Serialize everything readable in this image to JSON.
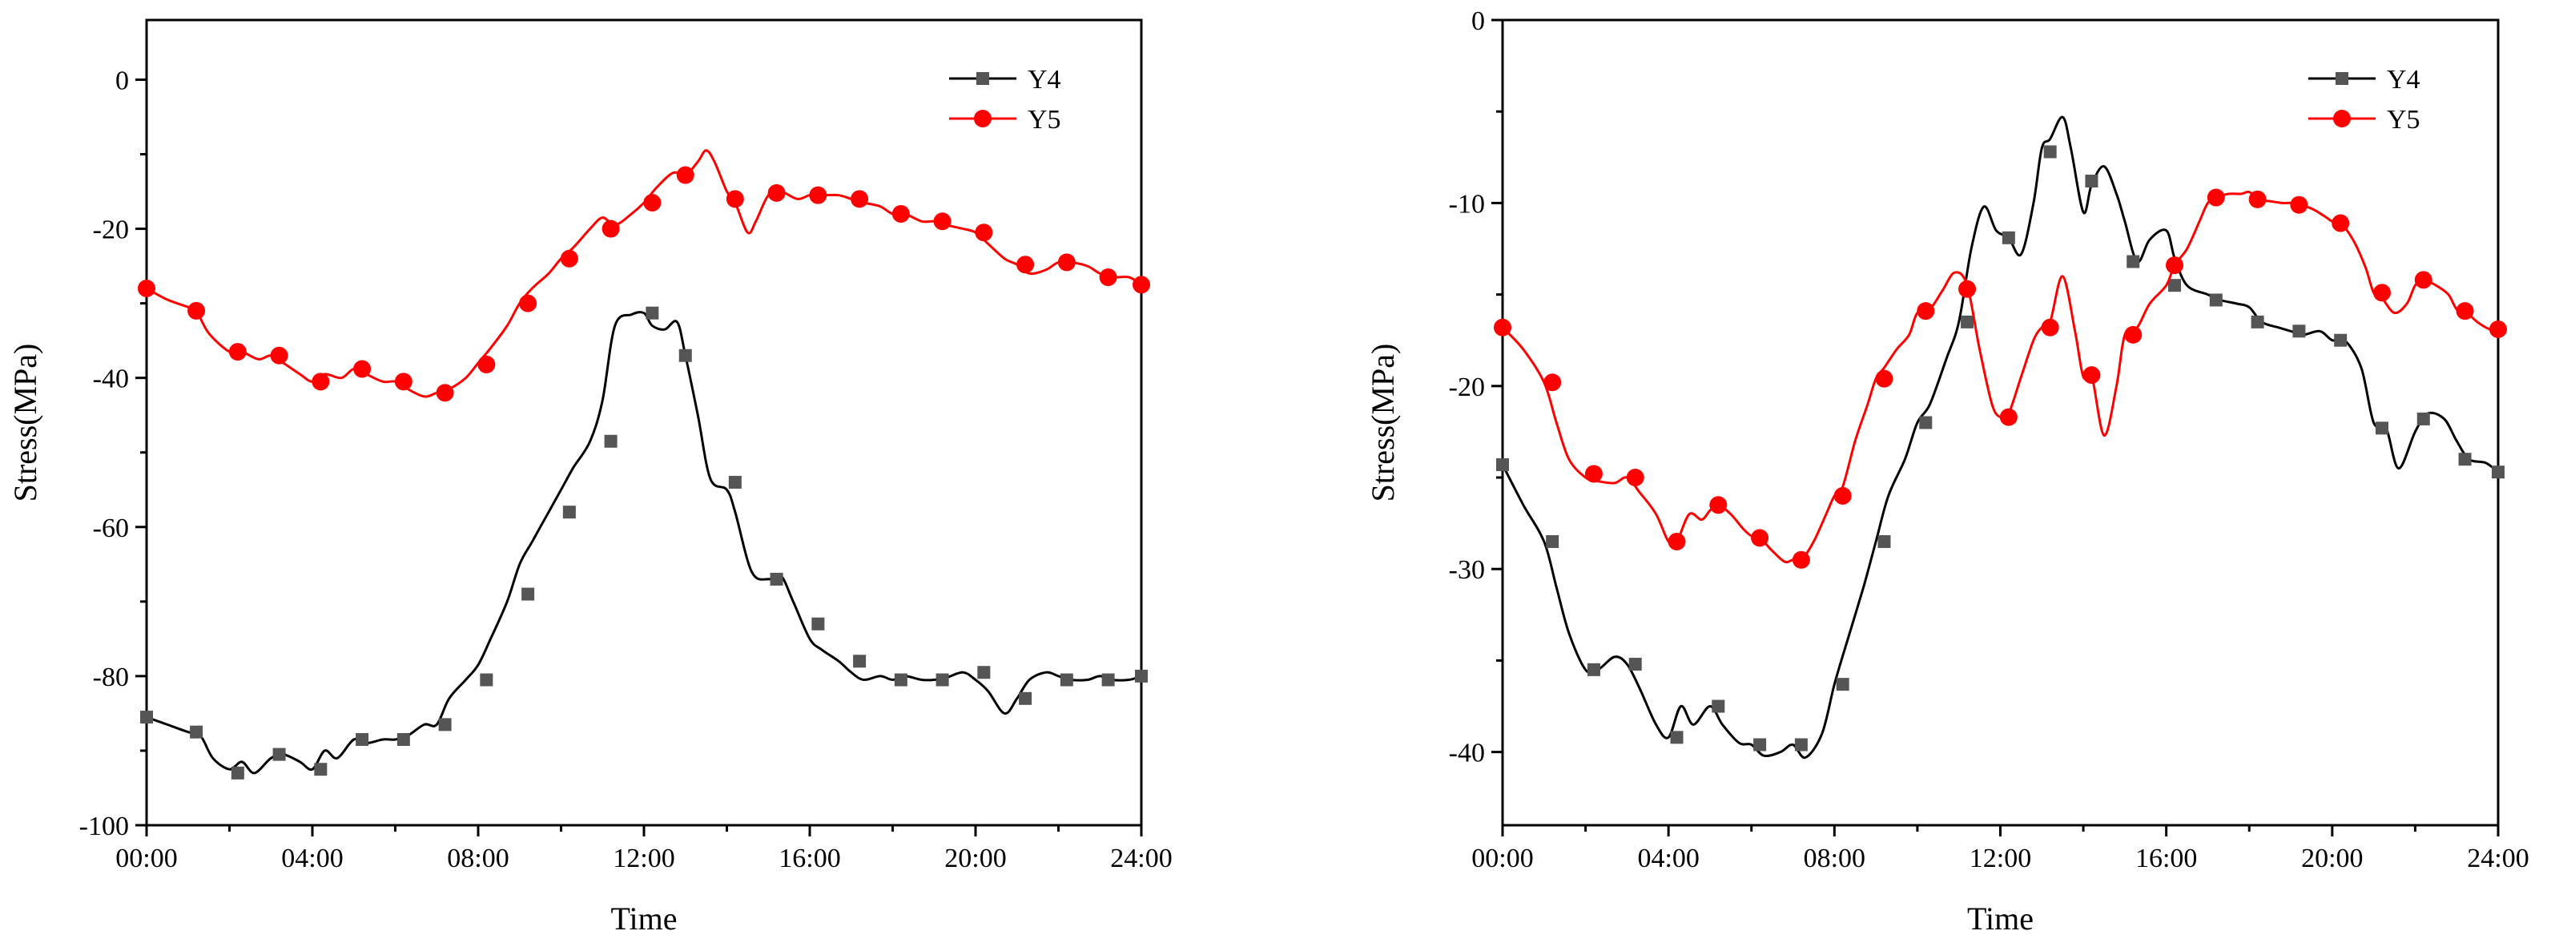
{
  "chart_data": [
    {
      "type": "line",
      "title": "",
      "xlabel": "Time",
      "ylabel": "Stress(MPa)",
      "xlim": [
        0,
        24
      ],
      "ylim": [
        -100,
        8
      ],
      "xticks": [
        0,
        4,
        8,
        12,
        16,
        20,
        24
      ],
      "xtick_labels": [
        "00:00",
        "04:00",
        "08:00",
        "12:00",
        "16:00",
        "20:00",
        "24:00"
      ],
      "yticks": [
        -100,
        -80,
        -60,
        -40,
        -20,
        0
      ],
      "ytick_labels": [
        "-100",
        "-80",
        "-60",
        "-40",
        "-20",
        "0"
      ],
      "legend_position": "top-right",
      "series": [
        {
          "name": "Y4",
          "color": "#000000",
          "marker": "square",
          "marker_color": "#555555",
          "line_x": [
            0,
            0.5,
            1,
            1.3,
            1.6,
            2.0,
            2.3,
            2.6,
            3.0,
            3.3,
            3.7,
            4.0,
            4.3,
            4.6,
            5.0,
            5.3,
            5.7,
            6.0,
            6.3,
            6.7,
            7.0,
            7.3,
            7.7,
            8.0,
            8.3,
            8.7,
            9.0,
            9.3,
            9.7,
            10.0,
            10.3,
            10.7,
            11.0,
            11.3,
            11.7,
            12.0,
            12.2,
            12.5,
            12.8,
            13.0,
            13.3,
            13.6,
            14.0,
            14.2,
            14.6,
            15.0,
            15.3,
            15.6,
            16.0,
            16.3,
            16.7,
            17.0,
            17.3,
            17.7,
            18.0,
            18.3,
            18.7,
            19.0,
            19.3,
            19.7,
            20.0,
            20.3,
            20.7,
            21.0,
            21.3,
            21.7,
            22.0,
            22.3,
            22.7,
            23.0,
            23.3,
            23.7,
            24.0
          ],
          "line_y": [
            -85.5,
            -86.5,
            -87.5,
            -88,
            -91,
            -92.5,
            -91.5,
            -93,
            -91,
            -90.5,
            -91.5,
            -92.5,
            -90,
            -91,
            -88.5,
            -89,
            -88.5,
            -88.5,
            -88,
            -86.5,
            -86.5,
            -83,
            -80.5,
            -78.5,
            -75,
            -70,
            -65,
            -62,
            -58,
            -55,
            -52,
            -48.5,
            -43,
            -33,
            -31.5,
            -31.3,
            -33,
            -33.5,
            -32.5,
            -37,
            -45,
            -53.5,
            -55,
            -58,
            -66,
            -67,
            -66.5,
            -70,
            -75,
            -76.5,
            -78,
            -79.5,
            -80.5,
            -80,
            -80.5,
            -80,
            -80.5,
            -80.5,
            -80.2,
            -79.5,
            -80.5,
            -82,
            -85,
            -83,
            -80.5,
            -79.5,
            -80,
            -80.5,
            -80.5,
            -80,
            -80.5,
            -80.5,
            -80
          ],
          "marker_x": [
            0.0,
            1.2,
            2.2,
            3.2,
            4.2,
            5.2,
            6.2,
            7.2,
            8.2,
            9.2,
            10.2,
            11.2,
            12.2,
            13.0,
            14.2,
            15.2,
            16.2,
            17.2,
            18.2,
            19.2,
            20.2,
            21.2,
            22.2,
            23.2,
            24.0
          ],
          "marker_y": [
            -85.5,
            -87.5,
            -93,
            -90.5,
            -92.5,
            -88.5,
            -88.5,
            -86.5,
            -80.5,
            -69,
            -58,
            -48.5,
            -31.3,
            -37,
            -54,
            -67,
            -73,
            -78,
            -80.5,
            -80.5,
            -79.5,
            -83,
            -80.5,
            -80.5,
            -80
          ]
        },
        {
          "name": "Y5",
          "color": "#ff0000",
          "marker": "circle",
          "marker_color": "#ff0000",
          "line_x": [
            0,
            0.5,
            1,
            1.2,
            1.5,
            2.0,
            2.3,
            2.7,
            3.0,
            3.3,
            3.7,
            4.0,
            4.3,
            4.7,
            5.0,
            5.3,
            5.7,
            6.0,
            6.3,
            6.7,
            7.0,
            7.3,
            7.7,
            8.0,
            8.3,
            8.7,
            9.0,
            9.3,
            9.7,
            10.0,
            10.3,
            10.7,
            11.0,
            11.3,
            11.7,
            12.0,
            12.3,
            12.7,
            13.0,
            13.3,
            13.5,
            13.7,
            14.0,
            14.2,
            14.5,
            14.7,
            15.0,
            15.3,
            15.7,
            16.0,
            16.3,
            16.7,
            17.0,
            17.3,
            17.7,
            18.0,
            18.3,
            18.7,
            19.0,
            19.3,
            19.7,
            20.0,
            20.3,
            20.7,
            21.0,
            21.3,
            21.7,
            22.0,
            22.3,
            22.7,
            23.0,
            23.3,
            23.7,
            24.0
          ],
          "line_y": [
            -28,
            -29.5,
            -30.5,
            -31,
            -34,
            -36.5,
            -36.5,
            -37.5,
            -37,
            -38,
            -39.5,
            -40.5,
            -39.5,
            -40,
            -38.8,
            -39.5,
            -40.5,
            -40.5,
            -41.5,
            -42.5,
            -42,
            -41.5,
            -40,
            -38,
            -36,
            -33,
            -30,
            -28,
            -26,
            -24,
            -22.5,
            -20,
            -18.5,
            -19.5,
            -18,
            -16.5,
            -14.5,
            -12.5,
            -12.8,
            -11,
            -9.5,
            -11,
            -15,
            -16.5,
            -20.5,
            -19,
            -15.5,
            -15,
            -16,
            -15.5,
            -15.5,
            -15.5,
            -16,
            -16.5,
            -17,
            -18,
            -18,
            -19,
            -19,
            -19.5,
            -20,
            -20.5,
            -22,
            -24,
            -24.8,
            -26,
            -25.5,
            -24.5,
            -24.5,
            -25,
            -26,
            -26.5,
            -26.5,
            -27.5
          ],
          "marker_x": [
            0.0,
            1.2,
            2.2,
            3.2,
            4.2,
            5.2,
            6.2,
            7.2,
            8.2,
            9.2,
            10.2,
            11.2,
            12.2,
            13.0,
            14.2,
            15.2,
            16.2,
            17.2,
            18.2,
            19.2,
            20.2,
            21.2,
            22.2,
            23.2,
            24.0
          ],
          "marker_y": [
            -28,
            -31,
            -36.5,
            -37,
            -40.5,
            -38.8,
            -40.5,
            -42,
            -38.2,
            -30,
            -24,
            -20,
            -16.5,
            -12.8,
            -16,
            -15.2,
            -15.5,
            -16,
            -18,
            -19,
            -20.5,
            -24.8,
            -24.5,
            -26.5,
            -27.5
          ]
        }
      ]
    },
    {
      "type": "line",
      "title": "",
      "xlabel": "Time",
      "ylabel": "Stress(MPa)",
      "xlim": [
        0,
        24
      ],
      "ylim": [
        -44,
        0
      ],
      "xticks": [
        0,
        4,
        8,
        12,
        16,
        20,
        24
      ],
      "xtick_labels": [
        "00:00",
        "04:00",
        "08:00",
        "12:00",
        "16:00",
        "20:00",
        "24:00"
      ],
      "yticks": [
        -40,
        -30,
        -20,
        -10,
        0
      ],
      "ytick_labels": [
        "-40",
        "-30",
        "-20",
        "-10",
        "0"
      ],
      "legend_position": "top-right",
      "series": [
        {
          "name": "Y4",
          "color": "#000000",
          "marker": "square",
          "marker_color": "#555555",
          "line_x": [
            0,
            0.5,
            1.0,
            1.3,
            1.6,
            2.0,
            2.3,
            2.7,
            3.0,
            3.3,
            3.7,
            4.0,
            4.3,
            4.6,
            5.0,
            5.3,
            5.7,
            6.0,
            6.3,
            6.7,
            7.0,
            7.3,
            7.7,
            8.0,
            8.3,
            8.7,
            9.0,
            9.3,
            9.7,
            10.0,
            10.3,
            10.7,
            11.0,
            11.3,
            11.6,
            11.9,
            12.2,
            12.5,
            12.8,
            13.0,
            13.2,
            13.5,
            13.7,
            14.0,
            14.2,
            14.5,
            14.8,
            15.0,
            15.3,
            15.6,
            16.0,
            16.2,
            16.5,
            17.0,
            17.3,
            17.7,
            18.0,
            18.3,
            18.7,
            19.0,
            19.3,
            19.7,
            20.0,
            20.3,
            20.7,
            21.0,
            21.3,
            21.6,
            22.0,
            22.3,
            22.7,
            23.0,
            23.3,
            23.7,
            24.0
          ],
          "line_y": [
            -24.3,
            -26.5,
            -28.5,
            -31,
            -33.5,
            -35.5,
            -35.5,
            -34.8,
            -35.2,
            -36.5,
            -38.5,
            -39.2,
            -37.5,
            -38.5,
            -37.5,
            -38.5,
            -39.5,
            -39.6,
            -40.2,
            -40,
            -39.6,
            -40.3,
            -39,
            -36.3,
            -34,
            -31,
            -28.5,
            -26,
            -24,
            -22,
            -21,
            -18.5,
            -16.5,
            -12.5,
            -10.2,
            -11.5,
            -11.9,
            -12.8,
            -10,
            -7,
            -6.5,
            -5.3,
            -7,
            -10.5,
            -9,
            -8,
            -9.5,
            -11,
            -13.2,
            -12,
            -11.5,
            -13,
            -14.5,
            -15,
            -15.3,
            -15.5,
            -15.7,
            -16.5,
            -16.8,
            -17,
            -17.2,
            -17,
            -17.5,
            -17.5,
            -19,
            -22,
            -22.3,
            -24.5,
            -22.5,
            -21.5,
            -21.8,
            -23,
            -24,
            -24.2,
            -24.7
          ],
          "marker_x": [
            0.0,
            1.2,
            2.2,
            3.2,
            4.2,
            5.2,
            6.2,
            7.2,
            8.2,
            9.2,
            10.2,
            11.2,
            12.2,
            13.2,
            14.2,
            15.2,
            16.2,
            17.2,
            18.2,
            19.2,
            20.2,
            21.2,
            22.2,
            23.2,
            24.0
          ],
          "marker_y": [
            -24.3,
            -28.5,
            -35.5,
            -35.2,
            -39.2,
            -37.5,
            -39.6,
            -39.6,
            -36.3,
            -28.5,
            -22,
            -16.5,
            -11.9,
            -7.2,
            -8.8,
            -13.2,
            -14.5,
            -15.3,
            -16.5,
            -17.0,
            -17.5,
            -22.3,
            -21.8,
            -24.0,
            -24.7
          ]
        },
        {
          "name": "Y5",
          "color": "#ff0000",
          "marker": "circle",
          "marker_color": "#ff0000",
          "line_x": [
            0,
            0.5,
            1.0,
            1.3,
            1.6,
            2.0,
            2.3,
            2.7,
            3.0,
            3.3,
            3.7,
            4.0,
            4.2,
            4.5,
            4.8,
            5.0,
            5.2,
            5.5,
            5.8,
            6.0,
            6.2,
            6.5,
            6.8,
            7.0,
            7.2,
            7.5,
            7.8,
            8.0,
            8.2,
            8.5,
            8.8,
            9.0,
            9.2,
            9.5,
            9.8,
            10.0,
            10.3,
            10.6,
            10.9,
            11.2,
            11.5,
            11.8,
            12.0,
            12.2,
            12.5,
            12.8,
            13.0,
            13.2,
            13.5,
            13.8,
            14.0,
            14.2,
            14.5,
            14.8,
            15.0,
            15.3,
            15.6,
            16.0,
            16.2,
            16.5,
            16.8,
            17.0,
            17.2,
            17.5,
            17.8,
            18.0,
            18.2,
            18.5,
            18.8,
            19.0,
            19.2,
            19.5,
            19.8,
            20.0,
            20.2,
            20.5,
            20.8,
            21.0,
            21.2,
            21.5,
            21.8,
            22.0,
            22.2,
            22.5,
            22.8,
            23.0,
            23.2,
            23.5,
            23.8,
            24.0
          ],
          "line_y": [
            -16.8,
            -18,
            -19.8,
            -22,
            -24,
            -25,
            -25.2,
            -25.3,
            -25,
            -25.8,
            -27,
            -28.5,
            -28.5,
            -27,
            -27.3,
            -26.8,
            -26.5,
            -27,
            -27.8,
            -28.2,
            -28.3,
            -29,
            -29.6,
            -29.5,
            -29.5,
            -28.5,
            -27,
            -26,
            -25.5,
            -23,
            -21,
            -19.6,
            -19,
            -18,
            -17.2,
            -16,
            -15.8,
            -14.8,
            -13.8,
            -14.5,
            -18,
            -21,
            -21.7,
            -21.5,
            -19.5,
            -17.5,
            -16.8,
            -16.5,
            -14,
            -17,
            -19.5,
            -19.4,
            -22.7,
            -20,
            -17.2,
            -16.8,
            -15.5,
            -14.5,
            -13.4,
            -12.5,
            -11,
            -10,
            -9.7,
            -9.5,
            -9.5,
            -9.4,
            -9.8,
            -9.9,
            -10,
            -10,
            -10.1,
            -10.3,
            -10.7,
            -11,
            -11.1,
            -12,
            -13.5,
            -14.9,
            -15.2,
            -16,
            -15.5,
            -14.5,
            -14.2,
            -14.5,
            -15,
            -15.8,
            -15.9,
            -16.5,
            -16.9,
            -16.9
          ],
          "marker_x": [
            0.0,
            1.2,
            2.2,
            3.2,
            4.2,
            5.2,
            6.2,
            7.2,
            8.2,
            9.2,
            10.2,
            11.2,
            12.2,
            13.2,
            14.2,
            15.2,
            16.2,
            17.2,
            18.2,
            19.2,
            20.2,
            21.2,
            22.2,
            23.2,
            24.0
          ],
          "marker_y": [
            -16.8,
            -19.8,
            -24.8,
            -25.0,
            -28.5,
            -26.5,
            -28.3,
            -29.5,
            -26.0,
            -19.6,
            -15.9,
            -14.7,
            -21.7,
            -16.8,
            -19.4,
            -17.2,
            -13.4,
            -9.7,
            -9.8,
            -10.1,
            -11.1,
            -14.9,
            -14.2,
            -15.9,
            -16.9
          ]
        }
      ]
    }
  ]
}
